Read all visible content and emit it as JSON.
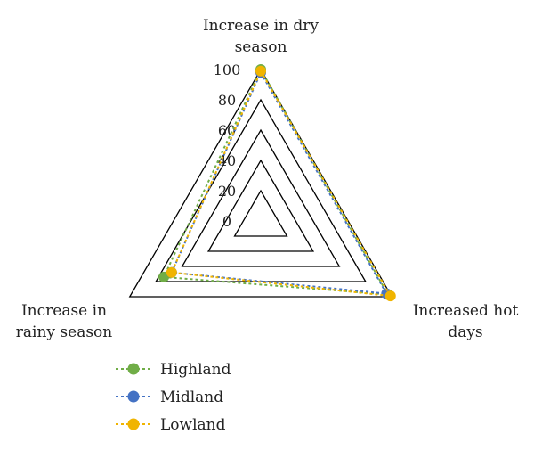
{
  "chart_data": {
    "type": "radar",
    "axes": [
      "Increase in dry season",
      "Increased hot days",
      "Increase in rainy season"
    ],
    "axis_label_lines": [
      [
        "Increase in dry",
        "season"
      ],
      [
        "Increased hot",
        "days"
      ],
      [
        "Increase in",
        "rainy season"
      ]
    ],
    "radial_range": [
      0,
      100
    ],
    "radial_ticks": [
      0,
      20,
      40,
      60,
      80,
      100
    ],
    "grid": true,
    "legend_position": "bottom-left",
    "series": [
      {
        "name": "Highland",
        "color": "#70ad47",
        "values": [
          100,
          97,
          74
        ]
      },
      {
        "name": "Midland",
        "color": "#4472c4",
        "values": [
          98,
          96,
          68
        ]
      },
      {
        "name": "Lowland",
        "color": "#f0b400",
        "values": [
          99,
          99,
          68
        ]
      }
    ]
  }
}
